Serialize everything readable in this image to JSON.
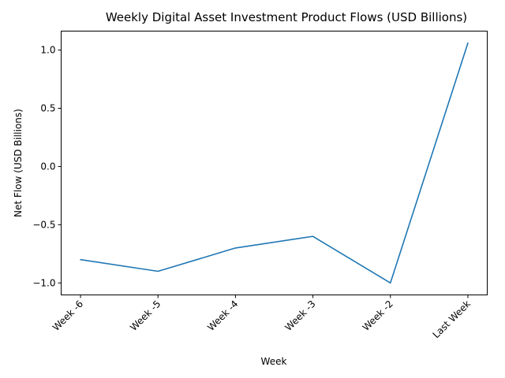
{
  "chart_data": {
    "type": "line",
    "title": "Weekly Digital Asset Investment Product Flows (USD Billions)",
    "xlabel": "Week",
    "ylabel": "Net Flow (USD Billions)",
    "categories": [
      "Week -6",
      "Week -5",
      "Week -4",
      "Week -3",
      "Week -2",
      "Last Week"
    ],
    "series": [
      {
        "values": [
          -0.8,
          -0.9,
          -0.7,
          -0.6,
          -1.0,
          1.06
        ]
      }
    ],
    "ylim": [
      -1.103,
      1.163
    ],
    "yticks": [
      -1.0,
      -0.5,
      0.0,
      0.5,
      1.0
    ],
    "ytick_labels": [
      "−1.0",
      "−0.5",
      "0.0",
      "0.5",
      "1.0"
    ],
    "grid": false,
    "legend": "none",
    "colors": {
      "series": "#1f77b4"
    }
  }
}
